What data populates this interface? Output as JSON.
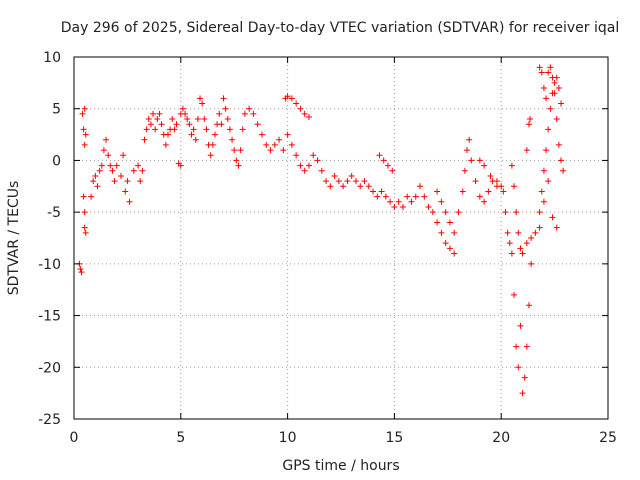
{
  "chart_data": {
    "type": "scatter",
    "title": "Day 296 of 2025, Sidereal Day-to-day VTEC variation (SDTVAR) for receiver iqal",
    "xlabel": "GPS time / hours",
    "ylabel": "SDTVAR / TECUs",
    "xlim": [
      0,
      25
    ],
    "ylim": [
      -25,
      10
    ],
    "xticks": [
      0,
      5,
      10,
      15,
      20,
      25
    ],
    "yticks": [
      -25,
      -20,
      -15,
      -10,
      -5,
      0,
      5,
      10
    ],
    "grid": true,
    "marker": "plus",
    "color": "#ff0000",
    "series": [
      {
        "name": "SDTVAR",
        "points": [
          [
            0.25,
            -10.0
          ],
          [
            0.3,
            -10.5
          ],
          [
            0.35,
            -10.8
          ],
          [
            0.4,
            4.5
          ],
          [
            0.45,
            3.0
          ],
          [
            0.5,
            1.5
          ],
          [
            0.45,
            -3.5
          ],
          [
            0.5,
            -5.0
          ],
          [
            0.5,
            -6.5
          ],
          [
            0.55,
            -7.0
          ],
          [
            0.5,
            5.0
          ],
          [
            0.55,
            2.5
          ],
          [
            0.8,
            -3.5
          ],
          [
            0.9,
            -2.0
          ],
          [
            1.0,
            -1.5
          ],
          [
            1.1,
            -2.5
          ],
          [
            1.2,
            -1.0
          ],
          [
            1.3,
            -0.5
          ],
          [
            1.4,
            1.0
          ],
          [
            1.5,
            2.0
          ],
          [
            1.6,
            0.5
          ],
          [
            1.7,
            -0.5
          ],
          [
            1.8,
            -1.0
          ],
          [
            1.9,
            -2.0
          ],
          [
            2.0,
            -0.5
          ],
          [
            2.2,
            -1.5
          ],
          [
            2.3,
            0.5
          ],
          [
            2.4,
            -3.0
          ],
          [
            2.5,
            -2.0
          ],
          [
            2.6,
            -4.0
          ],
          [
            2.8,
            -1.0
          ],
          [
            3.0,
            -0.5
          ],
          [
            3.1,
            -2.0
          ],
          [
            3.2,
            -1.0
          ],
          [
            3.3,
            2.0
          ],
          [
            3.4,
            3.0
          ],
          [
            3.5,
            4.0
          ],
          [
            3.6,
            3.5
          ],
          [
            3.7,
            4.5
          ],
          [
            3.8,
            3.0
          ],
          [
            3.9,
            4.0
          ],
          [
            4.0,
            4.5
          ],
          [
            4.1,
            3.5
          ],
          [
            4.2,
            2.5
          ],
          [
            4.3,
            1.5
          ],
          [
            4.4,
            2.5
          ],
          [
            4.5,
            3.0
          ],
          [
            4.6,
            4.0
          ],
          [
            4.7,
            3.0
          ],
          [
            4.8,
            3.5
          ],
          [
            5.0,
            4.5
          ],
          [
            5.1,
            5.0
          ],
          [
            5.2,
            4.5
          ],
          [
            5.3,
            4.0
          ],
          [
            5.4,
            3.5
          ],
          [
            5.5,
            2.5
          ],
          [
            5.6,
            3.0
          ],
          [
            5.7,
            2.0
          ],
          [
            5.8,
            4.0
          ],
          [
            5.9,
            6.0
          ],
          [
            6.0,
            5.5
          ],
          [
            6.1,
            4.0
          ],
          [
            6.2,
            3.0
          ],
          [
            6.3,
            1.5
          ],
          [
            6.4,
            0.5
          ],
          [
            6.5,
            1.5
          ],
          [
            6.6,
            2.5
          ],
          [
            6.7,
            3.5
          ],
          [
            6.8,
            4.5
          ],
          [
            6.9,
            3.5
          ],
          [
            4.9,
            -0.3
          ],
          [
            5.0,
            -0.5
          ],
          [
            7.0,
            6.0
          ],
          [
            7.1,
            5.0
          ],
          [
            7.2,
            4.0
          ],
          [
            7.3,
            3.0
          ],
          [
            7.4,
            2.0
          ],
          [
            7.5,
            1.0
          ],
          [
            7.6,
            0.0
          ],
          [
            7.7,
            -0.5
          ],
          [
            7.8,
            1.0
          ],
          [
            7.9,
            3.0
          ],
          [
            8.0,
            4.5
          ],
          [
            8.2,
            5.0
          ],
          [
            8.4,
            4.5
          ],
          [
            8.6,
            3.5
          ],
          [
            8.8,
            2.5
          ],
          [
            9.0,
            1.5
          ],
          [
            9.2,
            1.0
          ],
          [
            9.4,
            1.5
          ],
          [
            9.6,
            2.0
          ],
          [
            9.8,
            1.0
          ],
          [
            9.9,
            6.0
          ],
          [
            10.0,
            6.2
          ],
          [
            10.2,
            6.0
          ],
          [
            10.4,
            5.5
          ],
          [
            10.6,
            5.0
          ],
          [
            10.8,
            4.5
          ],
          [
            11.0,
            4.2
          ],
          [
            10.0,
            2.5
          ],
          [
            10.2,
            1.5
          ],
          [
            10.4,
            0.5
          ],
          [
            10.6,
            -0.5
          ],
          [
            10.8,
            -1.0
          ],
          [
            11.0,
            -0.5
          ],
          [
            11.2,
            0.5
          ],
          [
            11.4,
            0.0
          ],
          [
            11.6,
            -1.0
          ],
          [
            11.8,
            -2.0
          ],
          [
            12.0,
            -2.5
          ],
          [
            12.2,
            -1.5
          ],
          [
            12.4,
            -2.0
          ],
          [
            12.6,
            -2.5
          ],
          [
            12.8,
            -2.0
          ],
          [
            13.0,
            -1.5
          ],
          [
            13.2,
            -2.0
          ],
          [
            13.4,
            -2.5
          ],
          [
            13.6,
            -2.0
          ],
          [
            13.8,
            -2.5
          ],
          [
            14.0,
            -3.0
          ],
          [
            14.2,
            -3.5
          ],
          [
            14.4,
            -3.0
          ],
          [
            14.6,
            -3.5
          ],
          [
            14.8,
            -4.0
          ],
          [
            14.3,
            0.5
          ],
          [
            14.5,
            0.0
          ],
          [
            14.7,
            -0.5
          ],
          [
            14.9,
            -1.0
          ],
          [
            15.0,
            -4.5
          ],
          [
            15.2,
            -4.0
          ],
          [
            15.4,
            -4.5
          ],
          [
            15.6,
            -3.5
          ],
          [
            15.8,
            -4.0
          ],
          [
            16.0,
            -3.5
          ],
          [
            16.2,
            -2.5
          ],
          [
            16.4,
            -3.5
          ],
          [
            16.6,
            -4.5
          ],
          [
            16.8,
            -5.0
          ],
          [
            17.0,
            -6.0
          ],
          [
            17.2,
            -7.0
          ],
          [
            17.4,
            -8.0
          ],
          [
            17.6,
            -8.5
          ],
          [
            17.8,
            -9.0
          ],
          [
            17.0,
            -3.0
          ],
          [
            17.2,
            -4.0
          ],
          [
            17.4,
            -5.0
          ],
          [
            17.6,
            -6.0
          ],
          [
            17.8,
            -7.0
          ],
          [
            18.0,
            -5.0
          ],
          [
            18.2,
            -3.0
          ],
          [
            18.3,
            -1.0
          ],
          [
            18.4,
            1.0
          ],
          [
            18.5,
            2.0
          ],
          [
            18.6,
            0.0
          ],
          [
            18.8,
            -2.0
          ],
          [
            19.0,
            -3.5
          ],
          [
            19.2,
            -4.0
          ],
          [
            19.4,
            -3.0
          ],
          [
            19.6,
            -2.0
          ],
          [
            19.8,
            -2.5
          ],
          [
            19.0,
            0.0
          ],
          [
            19.2,
            -0.5
          ],
          [
            19.5,
            -1.5
          ],
          [
            19.8,
            -2.0
          ],
          [
            20.0,
            -2.5
          ],
          [
            20.1,
            -3.0
          ],
          [
            20.2,
            -5.0
          ],
          [
            20.3,
            -7.0
          ],
          [
            20.4,
            -8.0
          ],
          [
            20.5,
            -9.0
          ],
          [
            20.6,
            -13.0
          ],
          [
            20.7,
            -18.0
          ],
          [
            20.8,
            -20.0
          ],
          [
            20.9,
            -16.0
          ],
          [
            21.0,
            -22.5
          ],
          [
            21.1,
            -21.0
          ],
          [
            21.2,
            -18.0
          ],
          [
            21.3,
            -14.0
          ],
          [
            21.4,
            -10.0
          ],
          [
            20.5,
            -0.5
          ],
          [
            20.6,
            -2.5
          ],
          [
            20.7,
            -5.0
          ],
          [
            20.8,
            -7.0
          ],
          [
            20.9,
            -8.5
          ],
          [
            21.0,
            -9.0
          ],
          [
            21.2,
            -8.0
          ],
          [
            21.4,
            -7.5
          ],
          [
            21.6,
            -7.0
          ],
          [
            21.8,
            -6.5
          ],
          [
            21.2,
            1.0
          ],
          [
            21.3,
            3.5
          ],
          [
            21.35,
            4.0
          ],
          [
            21.8,
            -5.0
          ],
          [
            21.9,
            -3.0
          ],
          [
            22.0,
            -1.0
          ],
          [
            22.1,
            1.0
          ],
          [
            22.2,
            3.0
          ],
          [
            22.3,
            5.0
          ],
          [
            22.4,
            6.5
          ],
          [
            22.5,
            7.5
          ],
          [
            22.6,
            8.0
          ],
          [
            22.7,
            7.0
          ],
          [
            22.8,
            5.5
          ],
          [
            21.8,
            9.0
          ],
          [
            21.9,
            8.5
          ],
          [
            22.0,
            7.0
          ],
          [
            22.1,
            6.0
          ],
          [
            22.2,
            8.5
          ],
          [
            22.3,
            9.0
          ],
          [
            22.4,
            8.0
          ],
          [
            22.5,
            6.5
          ],
          [
            22.6,
            4.0
          ],
          [
            22.7,
            1.5
          ],
          [
            22.8,
            0.0
          ],
          [
            22.9,
            -1.0
          ],
          [
            22.0,
            -4.0
          ],
          [
            22.2,
            -2.0
          ],
          [
            22.4,
            -5.5
          ],
          [
            22.6,
            -6.5
          ]
        ]
      }
    ]
  }
}
